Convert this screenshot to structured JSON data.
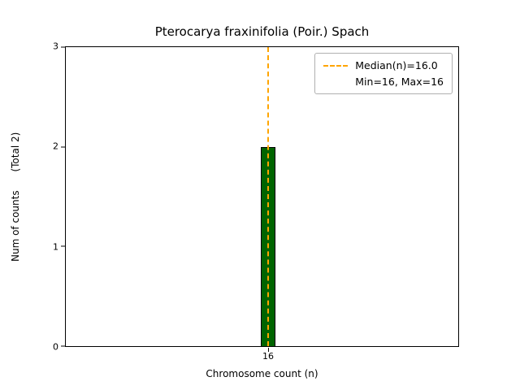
{
  "figure": {
    "title": "Pterocarya fraxinifolia (Poir.) Spach",
    "xlabel": "Chromosome count (n)",
    "ylabel": "Num of counts      (Total 2)"
  },
  "axes": {
    "yticks": [
      "0",
      "1",
      "2",
      "3"
    ],
    "xticks": [
      "16"
    ]
  },
  "legend": {
    "median_label": "Median(n)=16.0",
    "minmax_label": "Min=16, Max=16"
  },
  "colors": {
    "bar_fill": "#006400",
    "bar_edge": "#000000",
    "median_line": "#FFA500",
    "axis": "#000000",
    "background": "#FFFFFF"
  },
  "chart_data": {
    "type": "bar",
    "title": "Pterocarya fraxinifolia (Poir.) Spach",
    "xlabel": "Chromosome count (n)",
    "ylabel": "Num of counts (Total 2)",
    "categories": [
      "16"
    ],
    "values": [
      2
    ],
    "total_counts": 2,
    "ylim": [
      0,
      3
    ],
    "yticks": [
      0,
      1,
      2,
      3
    ],
    "bar_color": "#006400",
    "bar_edge_color": "#000000",
    "median_line": {
      "x": 16,
      "value": 16.0,
      "color": "#FFA500",
      "style": "dashed",
      "orientation": "vertical"
    },
    "min": 16,
    "max": 16,
    "legend_entries": [
      "Median(n)=16.0",
      "Min=16, Max=16"
    ],
    "legend_position": "upper right",
    "grid": false
  }
}
